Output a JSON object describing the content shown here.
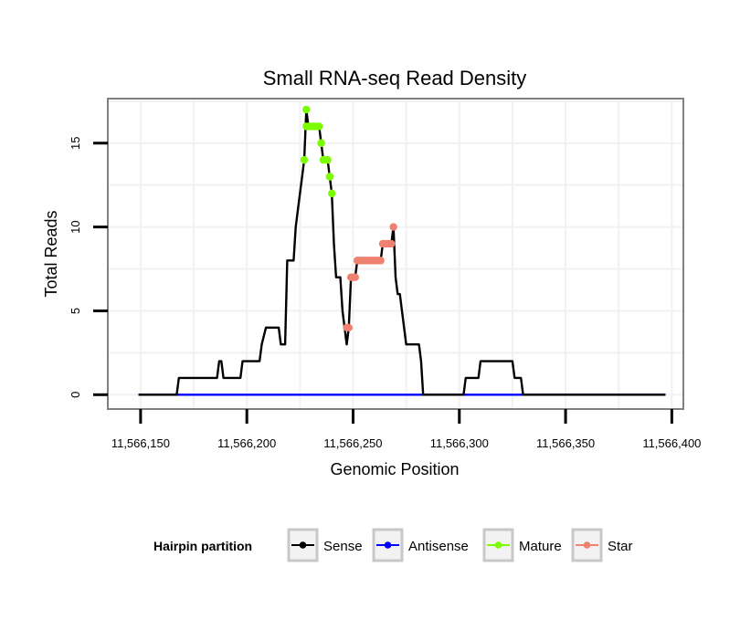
{
  "chart_data": {
    "type": "line",
    "title": "Small RNA-seq Read Density",
    "xlabel": "Genomic Position",
    "ylabel": "Total Reads",
    "xlim": [
      11566135,
      11566405
    ],
    "ylim": [
      -0.8,
      17.6
    ],
    "x_ticks": [
      11566150,
      11566200,
      11566250,
      11566300,
      11566350,
      11566400
    ],
    "x_tick_labels": [
      "11,566,150",
      "11,566,200",
      "11,566,250",
      "11,566,300",
      "11,566,350",
      "11,566,400"
    ],
    "y_ticks": [
      0,
      5,
      10,
      15
    ],
    "y_tick_labels": [
      "0",
      "5",
      "10",
      "15"
    ],
    "grid": true,
    "legend": {
      "title": "Hairpin partition",
      "position": "bottom",
      "entries": [
        {
          "name": "Sense",
          "color": "#000000"
        },
        {
          "name": "Antisense",
          "color": "#0000ff"
        },
        {
          "name": "Mature",
          "color": "#7cfc00"
        },
        {
          "name": "Star",
          "color": "#f08070"
        }
      ]
    },
    "series": [
      {
        "name": "Sense",
        "color": "#000000",
        "kind": "step",
        "points": [
          [
            11566149,
            0
          ],
          [
            11566167,
            0
          ],
          [
            11566168,
            1
          ],
          [
            11566186,
            1
          ],
          [
            11566187,
            2
          ],
          [
            11566188,
            2
          ],
          [
            11566189,
            1
          ],
          [
            11566197,
            1
          ],
          [
            11566198,
            2
          ],
          [
            11566206,
            2
          ],
          [
            11566207,
            3
          ],
          [
            11566209,
            4
          ],
          [
            11566215,
            4
          ],
          [
            11566216,
            3
          ],
          [
            11566218,
            3
          ],
          [
            11566219,
            8
          ],
          [
            11566222,
            8
          ],
          [
            11566223,
            10
          ],
          [
            11566224,
            11
          ],
          [
            11566226,
            13
          ],
          [
            11566227,
            14
          ],
          [
            11566228,
            17
          ],
          [
            11566229,
            16
          ],
          [
            11566234,
            16
          ],
          [
            11566235,
            15
          ],
          [
            11566236,
            14
          ],
          [
            11566238,
            14
          ],
          [
            11566239,
            13
          ],
          [
            11566240,
            12
          ],
          [
            11566241,
            9
          ],
          [
            11566242,
            7
          ],
          [
            11566244,
            7
          ],
          [
            11566245,
            5
          ],
          [
            11566246,
            4
          ],
          [
            11566247,
            3
          ],
          [
            11566248,
            4
          ],
          [
            11566249,
            7
          ],
          [
            11566251,
            7
          ],
          [
            11566252,
            8
          ],
          [
            11566263,
            8
          ],
          [
            11566264,
            9
          ],
          [
            11566268,
            9
          ],
          [
            11566269,
            10
          ],
          [
            11566270,
            7
          ],
          [
            11566271,
            6
          ],
          [
            11566272,
            6
          ],
          [
            11566273,
            5
          ],
          [
            11566274,
            4
          ],
          [
            11566275,
            3
          ],
          [
            11566281,
            3
          ],
          [
            11566282,
            2
          ],
          [
            11566283,
            0
          ],
          [
            11566302,
            0
          ],
          [
            11566303,
            1
          ],
          [
            11566309,
            1
          ],
          [
            11566310,
            2
          ],
          [
            11566325,
            2
          ],
          [
            11566326,
            1
          ],
          [
            11566329,
            1
          ],
          [
            11566330,
            0
          ],
          [
            11566397,
            0
          ]
        ]
      },
      {
        "name": "Antisense",
        "color": "#0000ff",
        "kind": "line",
        "points": [
          [
            11566149,
            0
          ],
          [
            11566397,
            0
          ]
        ]
      },
      {
        "name": "Mature",
        "color": "#7cfc00",
        "kind": "points",
        "points": [
          [
            11566227,
            14
          ],
          [
            11566228,
            17
          ],
          [
            11566228,
            16
          ],
          [
            11566229,
            16
          ],
          [
            11566230,
            16
          ],
          [
            11566231,
            16
          ],
          [
            11566232,
            16
          ],
          [
            11566233,
            16
          ],
          [
            11566234,
            16
          ],
          [
            11566235,
            15
          ],
          [
            11566235,
            15
          ],
          [
            11566236,
            14
          ],
          [
            11566237,
            14
          ],
          [
            11566238,
            14
          ],
          [
            11566239,
            13
          ],
          [
            11566239,
            13
          ],
          [
            11566240,
            12
          ]
        ]
      },
      {
        "name": "Star",
        "color": "#f08070",
        "kind": "points",
        "points": [
          [
            11566247,
            4
          ],
          [
            11566248,
            4
          ],
          [
            11566249,
            7
          ],
          [
            11566250,
            7
          ],
          [
            11566251,
            7
          ],
          [
            11566252,
            8
          ],
          [
            11566253,
            8
          ],
          [
            11566254,
            8
          ],
          [
            11566255,
            8
          ],
          [
            11566256,
            8
          ],
          [
            11566257,
            8
          ],
          [
            11566258,
            8
          ],
          [
            11566259,
            8
          ],
          [
            11566260,
            8
          ],
          [
            11566261,
            8
          ],
          [
            11566262,
            8
          ],
          [
            11566263,
            8
          ],
          [
            11566264,
            9
          ],
          [
            11566265,
            9
          ],
          [
            11566266,
            9
          ],
          [
            11566267,
            9
          ],
          [
            11566268,
            9
          ],
          [
            11566269,
            10
          ]
        ]
      }
    ]
  }
}
